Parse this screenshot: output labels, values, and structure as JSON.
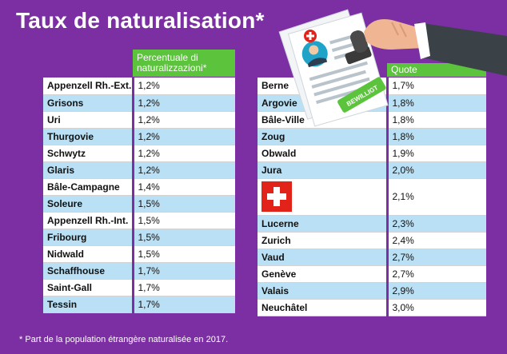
{
  "title": "Taux de naturalisation*",
  "left_header": "Percentuale di naturalizzazioni*",
  "right_header": "Quote",
  "left_rows": [
    {
      "name": "Appenzell Rh.-Ext.",
      "value": "1,2%"
    },
    {
      "name": "Grisons",
      "value": "1,2%"
    },
    {
      "name": "Uri",
      "value": "1,2%"
    },
    {
      "name": "Thurgovie",
      "value": "1,2%"
    },
    {
      "name": "Schwytz",
      "value": "1,2%"
    },
    {
      "name": "Glaris",
      "value": "1,2%"
    },
    {
      "name": "Bâle-Campagne",
      "value": "1,4%"
    },
    {
      "name": "Soleure",
      "value": "1,5%"
    },
    {
      "name": "Appenzell Rh.-Int.",
      "value": "1,5%"
    },
    {
      "name": "Fribourg",
      "value": "1,5%"
    },
    {
      "name": "Nidwald",
      "value": "1,5%"
    },
    {
      "name": "Schaffhouse",
      "value": "1,7%"
    },
    {
      "name": "Saint-Gall",
      "value": "1,7%"
    },
    {
      "name": "Tessin",
      "value": "1,7%"
    }
  ],
  "right_rows": [
    {
      "name": "Berne",
      "value": "1,7%"
    },
    {
      "name": "Argovie",
      "value": "1,8%"
    },
    {
      "name": "Bâle-Ville",
      "value": "1,8%"
    },
    {
      "name": "Zoug",
      "value": "1,8%"
    },
    {
      "name": "Obwald",
      "value": "1,9%"
    },
    {
      "name": "Jura",
      "value": "2,0%"
    },
    {
      "name": "",
      "value": "2,1%",
      "flag": "swiss-flag-icon"
    },
    {
      "name": "Lucerne",
      "value": "2,3%"
    },
    {
      "name": "Zurich",
      "value": "2,4%"
    },
    {
      "name": "Vaud",
      "value": "2,7%"
    },
    {
      "name": "Genève",
      "value": "2,7%"
    },
    {
      "name": "Valais",
      "value": "2,9%"
    },
    {
      "name": "Neuchâtel",
      "value": "3,0%"
    }
  ],
  "stamp_text": "BEWILLIGT",
  "footnote": "* Part de la population étrangère naturalisée en 2017.",
  "colors": {
    "background": "#7b2fa3",
    "header": "#5cc33c",
    "row_alt": "#b9e0f5",
    "flag_red": "#e2231a"
  }
}
